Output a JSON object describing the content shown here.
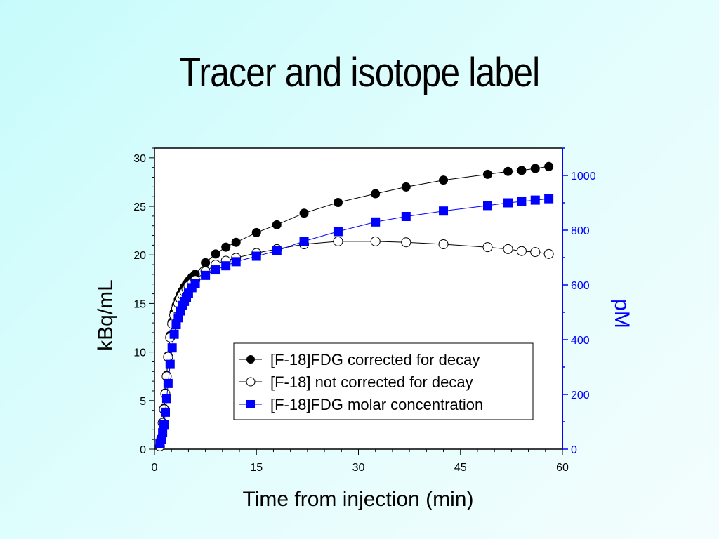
{
  "slide": {
    "title": "Tracer and isotope label"
  },
  "chart_data": {
    "type": "scatter",
    "xlabel": "Time from injection (min)",
    "ylabel": "kBq/mL",
    "y2label": "pM",
    "xlim": [
      0,
      60
    ],
    "ylim": [
      0,
      31
    ],
    "y2lim": [
      0,
      1100
    ],
    "xticks": [
      "0",
      "15",
      "30",
      "45",
      "60"
    ],
    "yticks": [
      "0",
      "5",
      "10",
      "15",
      "20",
      "25",
      "30"
    ],
    "y2ticks": [
      "0",
      "200",
      "400",
      "600",
      "800",
      "1000"
    ],
    "legend_position": "lower-right",
    "colors": {
      "axis2": "#0000ff",
      "series3": "#0000ff",
      "black": "#000000"
    },
    "series": [
      {
        "name": "[F-18]FDG corrected for decay",
        "axis": "left",
        "marker": "filled-circle",
        "x": [
          0.8,
          1.0,
          1.2,
          1.4,
          1.6,
          1.8,
          2.0,
          2.3,
          2.6,
          2.9,
          3.2,
          3.5,
          3.8,
          4.1,
          4.4,
          4.7,
          5.0,
          5.5,
          6.0,
          7.5,
          9.0,
          10.5,
          12.0,
          15.0,
          18.0,
          22.0,
          27.0,
          32.5,
          37.0,
          42.5,
          49.0,
          52.0,
          54.0,
          56.0,
          58.0
        ],
        "y": [
          0.3,
          1.1,
          2.7,
          4.2,
          5.8,
          7.6,
          9.6,
          11.7,
          13.1,
          14.1,
          14.8,
          15.4,
          15.9,
          16.3,
          16.7,
          17.0,
          17.3,
          17.7,
          18.0,
          19.2,
          20.1,
          20.8,
          21.3,
          22.3,
          23.1,
          24.3,
          25.4,
          26.3,
          27.0,
          27.7,
          28.3,
          28.6,
          28.7,
          28.9,
          29.1
        ]
      },
      {
        "name": "[F-18] not corrected for decay",
        "axis": "left",
        "marker": "open-circle",
        "x": [
          0.8,
          1.0,
          1.2,
          1.4,
          1.6,
          1.8,
          2.0,
          2.3,
          2.6,
          2.9,
          3.2,
          3.5,
          3.8,
          4.1,
          4.4,
          4.7,
          5.0,
          5.5,
          6.0,
          7.5,
          9.0,
          10.5,
          12.0,
          15.0,
          18.0,
          22.0,
          27.0,
          32.5,
          37.0,
          42.5,
          49.0,
          52.0,
          54.0,
          56.0,
          58.0
        ],
        "y": [
          0.3,
          1.1,
          2.7,
          4.1,
          5.7,
          7.5,
          9.5,
          11.5,
          12.9,
          13.8,
          14.5,
          15.0,
          15.5,
          15.9,
          16.2,
          16.5,
          16.8,
          17.1,
          17.4,
          18.3,
          19.0,
          19.4,
          19.7,
          20.2,
          20.6,
          21.1,
          21.4,
          21.4,
          21.3,
          21.1,
          20.8,
          20.6,
          20.4,
          20.3,
          20.1
        ]
      },
      {
        "name": "[F-18]FDG molar concentration",
        "axis": "right",
        "marker": "filled-square",
        "x": [
          0.8,
          1.0,
          1.2,
          1.4,
          1.6,
          1.8,
          2.0,
          2.3,
          2.6,
          2.9,
          3.2,
          3.5,
          3.8,
          4.1,
          4.4,
          4.7,
          5.0,
          5.5,
          6.0,
          7.5,
          9.0,
          10.5,
          12.0,
          15.0,
          18.0,
          22.0,
          27.0,
          32.5,
          37.0,
          42.5,
          49.0,
          52.0,
          54.0,
          56.0,
          58.0
        ],
        "y": [
          20,
          35,
          60,
          90,
          135,
          185,
          240,
          310,
          370,
          420,
          455,
          480,
          505,
          525,
          540,
          555,
          570,
          590,
          605,
          635,
          655,
          670,
          685,
          705,
          725,
          760,
          795,
          830,
          850,
          870,
          890,
          900,
          905,
          910,
          915
        ]
      }
    ]
  }
}
